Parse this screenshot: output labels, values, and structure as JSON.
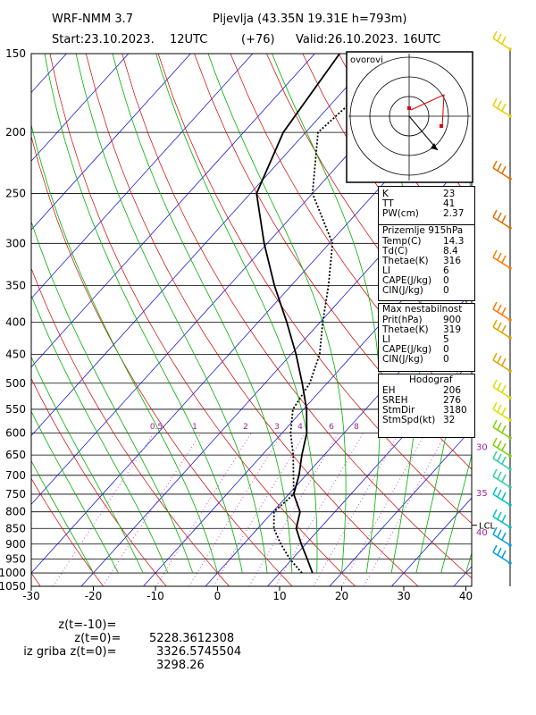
{
  "header": {
    "model": "WRF-NMM 3.7",
    "station": "Pljevlja (43.35N 19.31E h=793m)",
    "start_label": "Start:23.10.2023.",
    "start_time": "12UTC",
    "lead": "(+76)",
    "valid_label": "Valid:26.10.2023.",
    "valid_time": "16UTC"
  },
  "hodograph": {
    "label": "ovorovi"
  },
  "indices": [
    {
      "k": "K",
      "v": "23"
    },
    {
      "k": "TT",
      "v": "41"
    },
    {
      "k": "PW(cm)",
      "v": "2.37"
    }
  ],
  "surface": {
    "title": "Prizemlje 915hPa",
    "rows": [
      {
        "k": "Temp(C)",
        "v": "14.3"
      },
      {
        "k": "Td(C)",
        "v": "8.4"
      },
      {
        "k": "Thetae(K)",
        "v": "316"
      },
      {
        "k": "LI",
        "v": "6"
      },
      {
        "k": "CAPE(J/kg)",
        "v": "0"
      },
      {
        "k": "CIN(J/kg)",
        "v": "0"
      }
    ]
  },
  "max_instability": {
    "title": "Max nestabilnost",
    "rows": [
      {
        "k": "Prit(hPa)",
        "v": "900"
      },
      {
        "k": "Thetae(K)",
        "v": "319"
      },
      {
        "k": "LI",
        "v": "5"
      },
      {
        "k": "CAPE(J/kg)",
        "v": "0"
      },
      {
        "k": "CIN(J/kg)",
        "v": "0"
      }
    ]
  },
  "hodograf_box": {
    "title": "Hodograf",
    "rows": [
      {
        "k": "EH",
        "v": "206"
      },
      {
        "k": "SREH",
        "v": "276"
      },
      {
        "k": "StmDir",
        "v": "3180"
      },
      {
        "k": "StmSpd(kt)",
        "v": "32"
      }
    ]
  },
  "heights": [
    {
      "label": "z(t=-10)=",
      "value": "5228.3612308"
    },
    {
      "label": "z(t=0)=",
      "value": "3326.5745504"
    },
    {
      "label": "iz griba z(t=0)=",
      "value": "3298.26"
    }
  ],
  "chart_data": {
    "type": "line",
    "title": "",
    "xlabel": "",
    "ylabel": "",
    "x_ticks": [
      "-30",
      "-20",
      "-10",
      "0",
      "10",
      "20",
      "30",
      "40"
    ],
    "y_ticks": [
      "150",
      "200",
      "250",
      "300",
      "350",
      "400",
      "450",
      "500",
      "550",
      "600",
      "650",
      "700",
      "750",
      "800",
      "850",
      "900",
      "950",
      "1000",
      "1050"
    ],
    "xlim": [
      -30,
      40
    ],
    "ylim_hpa": [
      1050,
      150
    ],
    "y_scale": "log-pressure",
    "mixing_ratio_labels": [
      "0.5",
      "1",
      "2",
      "3",
      "4",
      "6",
      "8"
    ],
    "right_labels": [
      {
        "text": "30",
        "p": 630
      },
      {
        "text": "35",
        "p": 745
      },
      {
        "text": "40",
        "p": 860
      },
      {
        "text": "LCL",
        "p": 840
      }
    ],
    "series": [
      {
        "pressure": [
          1000,
          950,
          900,
          850,
          800,
          750,
          700,
          650,
          600,
          550,
          500,
          450,
          400,
          350,
          300,
          250,
          200,
          150
        ],
        "values": [
          13.6,
          9.6,
          6.0,
          2.6,
          0.2,
          0.8,
          -2.0,
          -5.0,
          -8.6,
          -11.7,
          -12.8,
          -15.4,
          -19.6,
          -24.0,
          -29.5,
          -40.0,
          -48.0,
          -45.5
        ]
      },
      {
        "pressure": [
          1000,
          950,
          900,
          850,
          800,
          750,
          700,
          650,
          600,
          550,
          500,
          450,
          400,
          350,
          300,
          250,
          200,
          150
        ],
        "values": [
          15.3,
          12.4,
          9.3,
          6.2,
          4.4,
          0.8,
          -1.1,
          -3.6,
          -6.0,
          -9.5,
          -14.0,
          -19.2,
          -25.4,
          -32.7,
          -40.5,
          -49.0,
          -53.6,
          -56.0
        ]
      }
    ],
    "wind_barbs_colors": [
      "#e8d000",
      "#e07000",
      "#ff7a00",
      "#e0a000",
      "#d6e000",
      "#7ed000",
      "#30d0a0",
      "#00c0c0",
      "#00a0e0"
    ],
    "colors": {
      "isotherm": "#0000d0",
      "dry_adiabat": "#d00000",
      "moist_adiabat": "#00b000",
      "mixing_ratio": "#c040c0",
      "isobar": "#000000"
    }
  }
}
